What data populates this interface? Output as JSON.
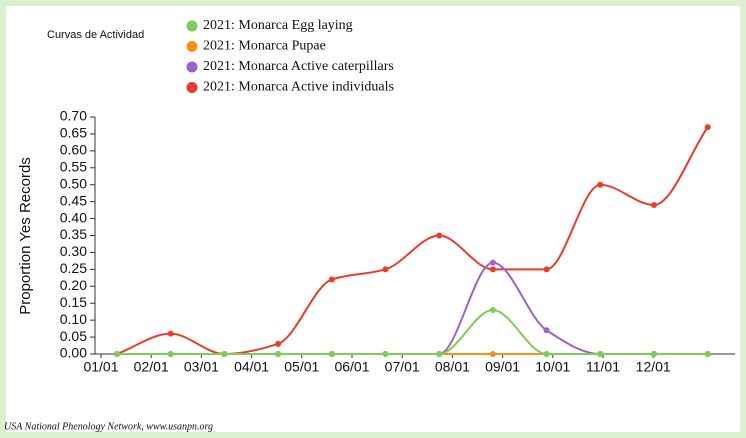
{
  "chart_data": {
    "type": "line",
    "title": "Curvas de Actividad",
    "ylabel": "Proportion Yes Records",
    "footer": "USA National Phenology Network, www.usanpn.org",
    "categories": [
      "01/01",
      "02/01",
      "03/01",
      "04/01",
      "05/01",
      "06/01",
      "07/01",
      "08/01",
      "09/01",
      "10/01",
      "11/01",
      "12/01"
    ],
    "series": [
      {
        "name": "2021: Monarca Egg laying",
        "color": "#7ccd5a",
        "values": [
          0,
          0,
          0,
          0,
          0,
          0,
          0,
          0.13,
          0,
          0,
          0,
          0
        ]
      },
      {
        "name": "2021: Monarca Pupae",
        "color": "#f5901e",
        "values": [
          0,
          0,
          0,
          0,
          0,
          0,
          0,
          0,
          0,
          0,
          0,
          0
        ]
      },
      {
        "name": "2021: Monarca Active caterpillars",
        "color": "#9a64c8",
        "values": [
          0,
          0,
          0,
          0,
          0,
          0,
          0,
          0.27,
          0.07,
          0,
          0,
          0
        ]
      },
      {
        "name": "2021: Monarca Active individuals",
        "color": "#ec3b2c",
        "values": [
          0,
          0.06,
          0,
          0.03,
          0.22,
          0.25,
          0.35,
          0.25,
          0.25,
          0.5,
          0.44,
          0.67
        ]
      }
    ],
    "ylim": [
      0,
      0.7
    ],
    "yticks": [
      {
        "value": 0,
        "label": "0.00"
      },
      {
        "value": 0.05,
        "label": "0.05"
      },
      {
        "value": 0.1,
        "label": "0.10"
      },
      {
        "value": 0.15,
        "label": "0.15"
      },
      {
        "value": 0.2,
        "label": "0.20"
      },
      {
        "value": 0.25,
        "label": "0.25"
      },
      {
        "value": 0.3,
        "label": "0.30"
      },
      {
        "value": 0.35,
        "label": "0.35"
      },
      {
        "value": 0.4,
        "label": "0.40"
      },
      {
        "value": 0.45,
        "label": "0.45"
      },
      {
        "value": 0.5,
        "label": "0.50"
      },
      {
        "value": 0.55,
        "label": "0.55"
      },
      {
        "value": 0.6,
        "label": "0.60"
      },
      {
        "value": 0.65,
        "label": "0.65"
      },
      {
        "value": 0.7,
        "label": "0.70"
      }
    ],
    "grid": false
  }
}
